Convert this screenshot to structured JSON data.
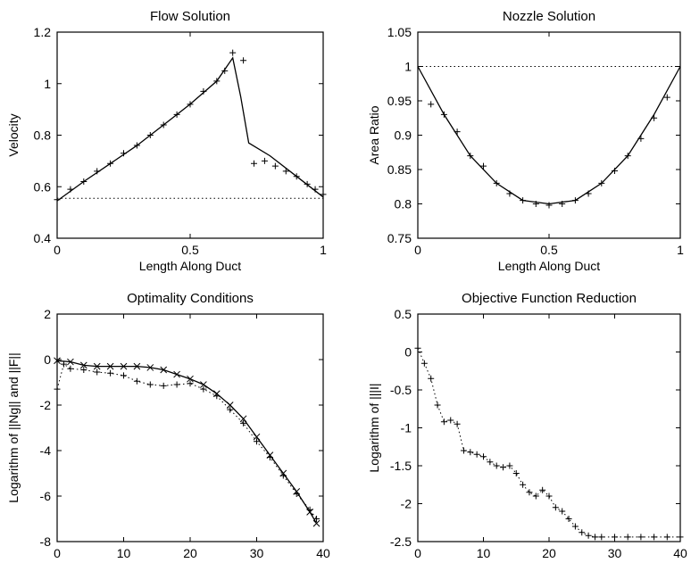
{
  "chart_data": [
    {
      "type": "line",
      "title": "Flow Solution",
      "xlabel": "Length Along Duct",
      "ylabel": "Velocity",
      "xlim": [
        0,
        1
      ],
      "ylim": [
        0.4,
        1.2
      ],
      "xticks": [
        "0",
        "0.5",
        "1"
      ],
      "yticks": [
        "0.4",
        "0.6",
        "0.8",
        "1",
        "1.2"
      ],
      "grid": false,
      "series": [
        {
          "style": "solid",
          "x": [
            0,
            0.1,
            0.2,
            0.3,
            0.4,
            0.5,
            0.6,
            0.66,
            0.69,
            0.72,
            0.8,
            0.9,
            1.0
          ],
          "y": [
            0.545,
            0.62,
            0.69,
            0.76,
            0.84,
            0.92,
            1.01,
            1.1,
            0.95,
            0.77,
            0.72,
            0.64,
            0.56
          ]
        },
        {
          "style": "marker-plus",
          "x": [
            0,
            0.05,
            0.1,
            0.15,
            0.2,
            0.25,
            0.3,
            0.35,
            0.4,
            0.45,
            0.5,
            0.55,
            0.6,
            0.63,
            0.66,
            0.7,
            0.74,
            0.78,
            0.82,
            0.86,
            0.9,
            0.94,
            0.97,
            1.0
          ],
          "y": [
            0.55,
            0.59,
            0.62,
            0.66,
            0.69,
            0.73,
            0.76,
            0.8,
            0.84,
            0.88,
            0.92,
            0.97,
            1.01,
            1.05,
            1.12,
            1.09,
            0.69,
            0.7,
            0.68,
            0.66,
            0.64,
            0.61,
            0.59,
            0.57
          ]
        },
        {
          "style": "dotted",
          "x": [
            0,
            0.2,
            0.4,
            0.6,
            0.8,
            1.0
          ],
          "y": [
            0.555,
            0.555,
            0.555,
            0.555,
            0.555,
            0.555
          ]
        }
      ]
    },
    {
      "type": "line",
      "title": "Nozzle Solution",
      "xlabel": "Length Along Duct",
      "ylabel": "Area Ratio",
      "xlim": [
        0,
        1
      ],
      "ylim": [
        0.75,
        1.05
      ],
      "xticks": [
        "0",
        "0.5",
        "1"
      ],
      "yticks": [
        "0.75",
        "0.8",
        "0.85",
        "0.9",
        "0.95",
        "1",
        "1.05"
      ],
      "grid": false,
      "series": [
        {
          "style": "solid",
          "x": [
            0,
            0.1,
            0.2,
            0.3,
            0.4,
            0.5,
            0.6,
            0.7,
            0.8,
            0.9,
            1.0
          ],
          "y": [
            1.0,
            0.93,
            0.87,
            0.83,
            0.805,
            0.8,
            0.805,
            0.83,
            0.87,
            0.93,
            1.0
          ]
        },
        {
          "style": "marker-plus",
          "x": [
            0.05,
            0.1,
            0.15,
            0.2,
            0.25,
            0.3,
            0.35,
            0.4,
            0.45,
            0.5,
            0.55,
            0.6,
            0.65,
            0.7,
            0.75,
            0.8,
            0.85,
            0.9,
            0.95
          ],
          "y": [
            0.945,
            0.93,
            0.905,
            0.87,
            0.855,
            0.83,
            0.815,
            0.805,
            0.8,
            0.798,
            0.8,
            0.805,
            0.815,
            0.83,
            0.848,
            0.87,
            0.895,
            0.925,
            0.955
          ]
        },
        {
          "style": "dotted",
          "x": [
            0,
            0.25,
            0.5,
            0.75,
            1.0
          ],
          "y": [
            1.0,
            1.0,
            1.0,
            1.0,
            1.0
          ]
        }
      ]
    },
    {
      "type": "line",
      "title": "Optimality Conditions",
      "xlabel": "Iterations",
      "ylabel": "Logarithm of ||Ng|| and ||F||",
      "xlim": [
        0,
        40
      ],
      "ylim": [
        -8,
        2
      ],
      "xticks": [
        "0",
        "10",
        "20",
        "30",
        "40"
      ],
      "yticks": [
        "-8",
        "-6",
        "-4",
        "-2",
        "0",
        "2"
      ],
      "grid": false,
      "series": [
        {
          "style": "solid-x",
          "x": [
            0,
            2,
            4,
            6,
            8,
            10,
            12,
            14,
            16,
            18,
            20,
            22,
            24,
            26,
            28,
            30,
            32,
            34,
            36,
            38,
            39
          ],
          "y": [
            -0.05,
            -0.1,
            -0.25,
            -0.3,
            -0.3,
            -0.3,
            -0.3,
            -0.35,
            -0.45,
            -0.65,
            -0.85,
            -1.1,
            -1.5,
            -2.0,
            -2.6,
            -3.4,
            -4.2,
            -5.0,
            -5.8,
            -6.7,
            -7.2
          ]
        },
        {
          "style": "dotted-plus",
          "x": [
            0,
            1,
            2,
            4,
            6,
            8,
            10,
            12,
            14,
            16,
            18,
            20,
            22,
            24,
            26,
            28,
            30,
            32,
            34,
            36,
            38,
            39
          ],
          "y": [
            -1.3,
            -0.2,
            -0.4,
            -0.45,
            -0.55,
            -0.6,
            -0.7,
            -0.95,
            -1.1,
            -1.15,
            -1.1,
            -1.05,
            -1.3,
            -1.6,
            -2.2,
            -2.8,
            -3.6,
            -4.3,
            -5.1,
            -5.9,
            -6.6,
            -7.0
          ]
        }
      ]
    },
    {
      "type": "line",
      "title": "Objective Function Reduction",
      "xlabel": "Iterations",
      "ylabel": "Logarithm of |||I|",
      "xlim": [
        0,
        40
      ],
      "ylim": [
        -2.5,
        0.5
      ],
      "xticks": [
        "0",
        "10",
        "20",
        "30",
        "40"
      ],
      "yticks": [
        "-2.5",
        "-2",
        "-1.5",
        "-1",
        "-0.5",
        "0",
        "0.5"
      ],
      "grid": false,
      "series": [
        {
          "style": "dotted-plus",
          "x": [
            0,
            1,
            2,
            3,
            4,
            5,
            6,
            7,
            8,
            9,
            10,
            11,
            12,
            13,
            14,
            15,
            16,
            17,
            18,
            19,
            20,
            21,
            22,
            23,
            24,
            25,
            26,
            27,
            28,
            30,
            32,
            34,
            36,
            38,
            40
          ],
          "y": [
            0.05,
            -0.15,
            -0.35,
            -0.7,
            -0.92,
            -0.9,
            -0.95,
            -1.3,
            -1.32,
            -1.35,
            -1.38,
            -1.45,
            -1.5,
            -1.52,
            -1.5,
            -1.6,
            -1.75,
            -1.85,
            -1.9,
            -1.82,
            -1.9,
            -2.05,
            -2.1,
            -2.2,
            -2.3,
            -2.38,
            -2.42,
            -2.44,
            -2.44,
            -2.44,
            -2.44,
            -2.44,
            -2.44,
            -2.44,
            -2.44
          ]
        }
      ]
    }
  ]
}
